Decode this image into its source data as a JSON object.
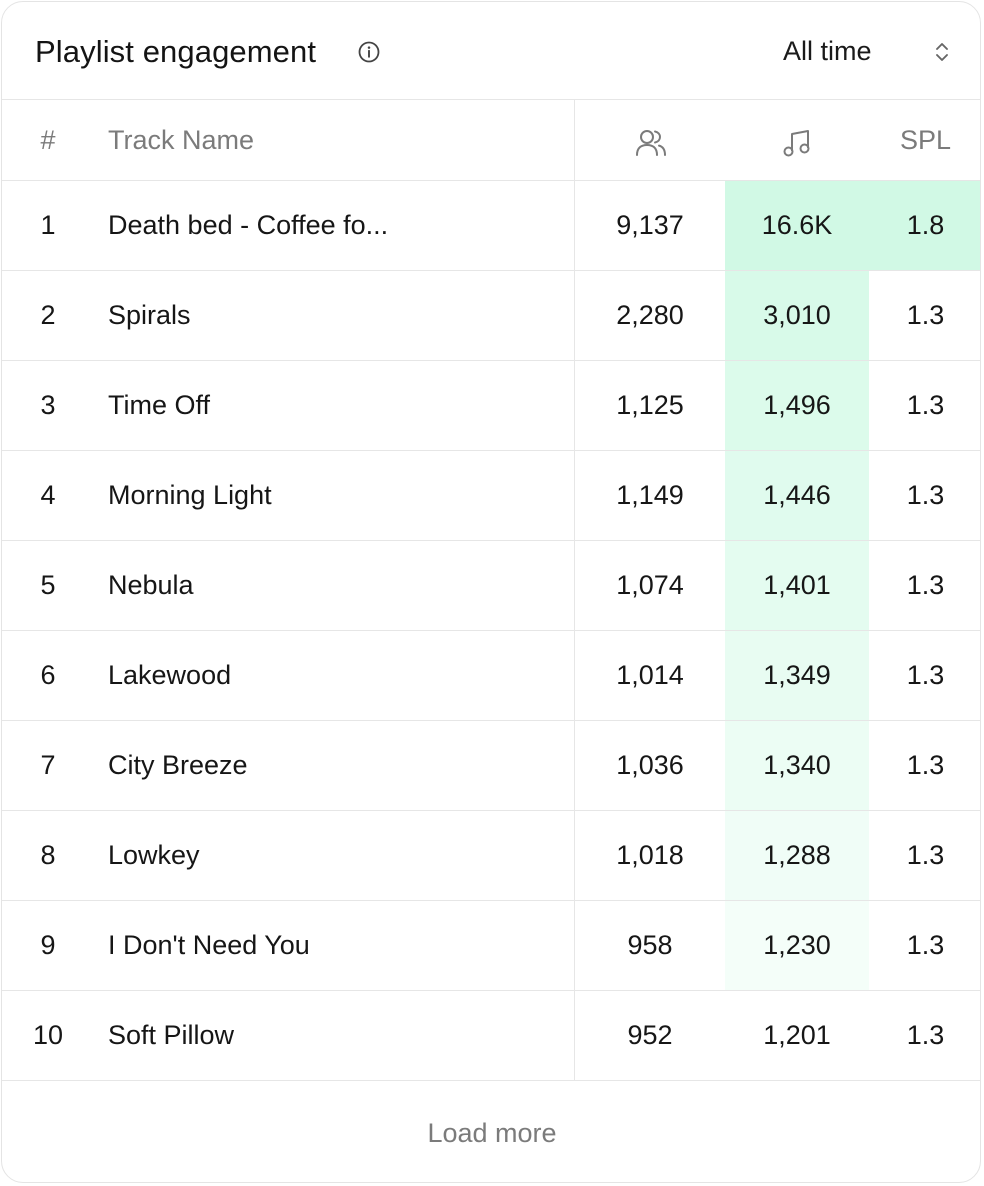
{
  "header": {
    "title": "Playlist engagement",
    "info_icon": "info-icon",
    "period": "All time",
    "period_icon": "chevron-up-down-icon"
  },
  "table": {
    "columns": {
      "rank": "#",
      "track_name": "Track Name",
      "listeners_icon": "users-icon",
      "streams_icon": "music-note-icon",
      "spl": "SPL"
    },
    "heat_color": "#2ee58a",
    "rows": [
      {
        "rank": "1",
        "name": "Death bed - Coffee fo...",
        "listeners": "9,137",
        "streams": "16.6K",
        "streams_heat": 0.22,
        "spl": "1.8",
        "spl_heat": 0.22
      },
      {
        "rank": "2",
        "name": "Spirals",
        "listeners": "2,280",
        "streams": "3,010",
        "streams_heat": 0.19,
        "spl": "1.3",
        "spl_heat": 0
      },
      {
        "rank": "3",
        "name": "Time Off",
        "listeners": "1,125",
        "streams": "1,496",
        "streams_heat": 0.17,
        "spl": "1.3",
        "spl_heat": 0
      },
      {
        "rank": "4",
        "name": "Morning Light",
        "listeners": "1,149",
        "streams": "1,446",
        "streams_heat": 0.15,
        "spl": "1.3",
        "spl_heat": 0
      },
      {
        "rank": "5",
        "name": "Nebula",
        "listeners": "1,074",
        "streams": "1,401",
        "streams_heat": 0.13,
        "spl": "1.3",
        "spl_heat": 0
      },
      {
        "rank": "6",
        "name": "Lakewood",
        "listeners": "1,014",
        "streams": "1,349",
        "streams_heat": 0.11,
        "spl": "1.3",
        "spl_heat": 0
      },
      {
        "rank": "7",
        "name": "City Breeze",
        "listeners": "1,036",
        "streams": "1,340",
        "streams_heat": 0.09,
        "spl": "1.3",
        "spl_heat": 0
      },
      {
        "rank": "8",
        "name": "Lowkey",
        "listeners": "1,018",
        "streams": "1,288",
        "streams_heat": 0.07,
        "spl": "1.3",
        "spl_heat": 0
      },
      {
        "rank": "9",
        "name": "I Don't Need You",
        "listeners": "958",
        "streams": "1,230",
        "streams_heat": 0.055,
        "spl": "1.3",
        "spl_heat": 0
      },
      {
        "rank": "10",
        "name": "Soft Pillow",
        "listeners": "952",
        "streams": "1,201",
        "streams_heat": 0,
        "spl": "1.3",
        "spl_heat": 0
      }
    ]
  },
  "footer": {
    "load_more": "Load more"
  }
}
